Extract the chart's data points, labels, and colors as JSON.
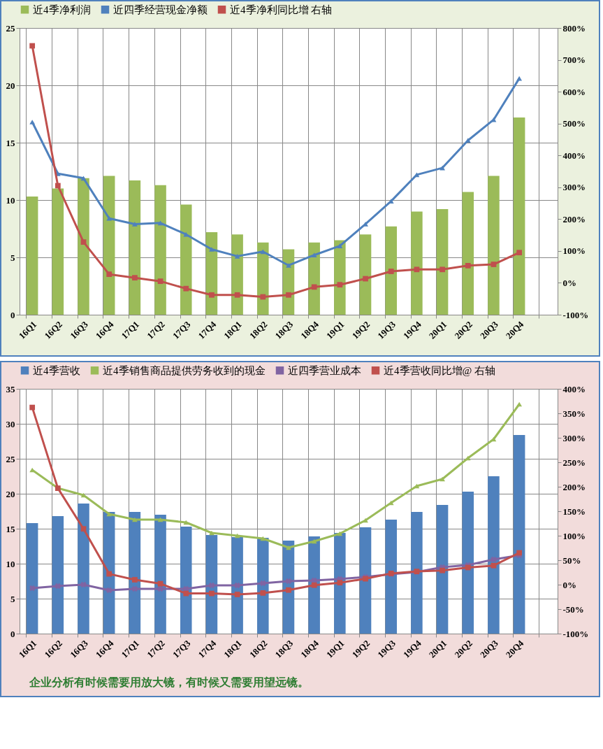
{
  "chart_data": [
    {
      "type": "bar",
      "categories": [
        "16Q1",
        "16Q2",
        "16Q3",
        "16Q4",
        "17Q1",
        "17Q2",
        "17Q3",
        "17Q4",
        "18Q1",
        "18Q2",
        "18Q3",
        "18Q4",
        "19Q1",
        "19Q2",
        "19Q3",
        "19Q4",
        "20Q1",
        "20Q2",
        "20Q3",
        "20Q4",
        null
      ],
      "series": [
        {
          "name": "近4季净利润",
          "color": "#9bbb59",
          "values": [
            10.3,
            11.0,
            11.9,
            12.1,
            11.7,
            11.3,
            9.6,
            7.2,
            7.0,
            6.3,
            5.7,
            6.3,
            6.5,
            7.0,
            7.7,
            9.0,
            9.2,
            10.7,
            12.1,
            17.2,
            null
          ]
        },
        {
          "name": "近四季经营现金净额",
          "type": "line",
          "color": "#4f81bd",
          "marker": "triangle",
          "values": [
            16.8,
            12.3,
            11.9,
            8.4,
            7.9,
            8.0,
            7.0,
            5.7,
            5.1,
            5.5,
            4.3,
            5.2,
            6.0,
            7.9,
            9.9,
            12.2,
            12.8,
            15.2,
            17.0,
            20.6,
            null
          ]
        },
        {
          "name": "近4季净利同比增 右轴",
          "type": "line",
          "axis": "y2",
          "color": "#c0504d",
          "marker": "square",
          "values": [
            744,
            305,
            128,
            27,
            16,
            5,
            -18,
            -38,
            -38,
            -44,
            -38,
            -13,
            -6,
            13,
            36,
            42,
            42,
            54,
            58,
            95,
            null
          ]
        }
      ],
      "ylim": [
        0,
        25
      ],
      "yticks": [
        0,
        5,
        10,
        15,
        20,
        25
      ],
      "y2lim": [
        -100,
        800
      ],
      "y2ticks": [
        {
          "value": -100,
          "label": "-100%"
        },
        {
          "value": 0,
          "label": "0%"
        },
        {
          "value": 100,
          "label": "100%"
        },
        {
          "value": 200,
          "label": "200%"
        },
        {
          "value": 300,
          "label": "300%"
        },
        {
          "value": 400,
          "label": "400%"
        },
        {
          "value": 500,
          "label": "500%"
        },
        {
          "value": 600,
          "label": "600%"
        },
        {
          "value": 700,
          "label": "700%"
        },
        {
          "value": 800,
          "label": "800%"
        }
      ],
      "grid": true,
      "legend": "top"
    },
    {
      "type": "bar",
      "categories": [
        "16Q1",
        "16Q2",
        "16Q3",
        "16Q4",
        "17Q1",
        "17Q2",
        "17Q3",
        "17Q4",
        "18Q1",
        "18Q2",
        "18Q3",
        "18Q4",
        "19Q1",
        "19Q2",
        "19Q3",
        "19Q4",
        "20Q1",
        "20Q2",
        "20Q3",
        "20Q4",
        null
      ],
      "series": [
        {
          "name": "近4季营收",
          "color": "#4f81bd",
          "values": [
            15.8,
            16.8,
            18.6,
            17.4,
            17.4,
            17.0,
            15.3,
            14.1,
            13.8,
            13.7,
            13.3,
            13.9,
            14.4,
            15.2,
            16.3,
            17.4,
            18.4,
            20.3,
            22.5,
            28.4,
            null
          ]
        },
        {
          "name": "近4季销售商品提供劳务收到的现金",
          "type": "line",
          "color": "#9bbb59",
          "marker": "triangle",
          "values": [
            23.4,
            20.8,
            19.8,
            17.1,
            16.3,
            16.3,
            15.9,
            14.4,
            14.0,
            13.6,
            12.3,
            13.2,
            14.3,
            16.2,
            18.7,
            21.1,
            22.1,
            25.1,
            27.8,
            32.8,
            null
          ]
        },
        {
          "name": "近四季营业成本",
          "type": "line",
          "color": "#8064a2",
          "marker": "cross",
          "values": [
            6.5,
            6.8,
            7.0,
            6.2,
            6.4,
            6.4,
            6.4,
            6.9,
            6.9,
            7.2,
            7.5,
            7.6,
            7.8,
            8.1,
            8.5,
            8.8,
            9.5,
            9.8,
            10.6,
            11.2,
            null
          ]
        },
        {
          "name": "近4季营收同比增@ 右轴",
          "type": "line",
          "axis": "y2",
          "color": "#c0504d",
          "marker": "square",
          "values": [
            362,
            197,
            114,
            22,
            10,
            2,
            -18,
            -18,
            -20,
            -17,
            -11,
            -1,
            4,
            12,
            23,
            27,
            29,
            35,
            39,
            65,
            null
          ]
        }
      ],
      "ylim": [
        0,
        35
      ],
      "yticks": [
        0,
        5,
        10,
        15,
        20,
        25,
        30,
        35
      ],
      "y2lim": [
        -100,
        400
      ],
      "y2ticks": [
        {
          "value": -100,
          "label": "-100%"
        },
        {
          "value": -50,
          "label": "-50%"
        },
        {
          "value": 0,
          "label": "0%"
        },
        {
          "value": 50,
          "label": "50%"
        },
        {
          "value": 100,
          "label": "100%"
        },
        {
          "value": 150,
          "label": "150%"
        },
        {
          "value": 200,
          "label": "200%"
        },
        {
          "value": 250,
          "label": "250%"
        },
        {
          "value": 300,
          "label": "300%"
        },
        {
          "value": 350,
          "label": "350%"
        },
        {
          "value": 400,
          "label": "400%"
        }
      ],
      "grid": true,
      "legend": "top",
      "annotations": [
        "企业分析有时候需要用放大镜，有时候又需要用望远镜。"
      ]
    }
  ]
}
